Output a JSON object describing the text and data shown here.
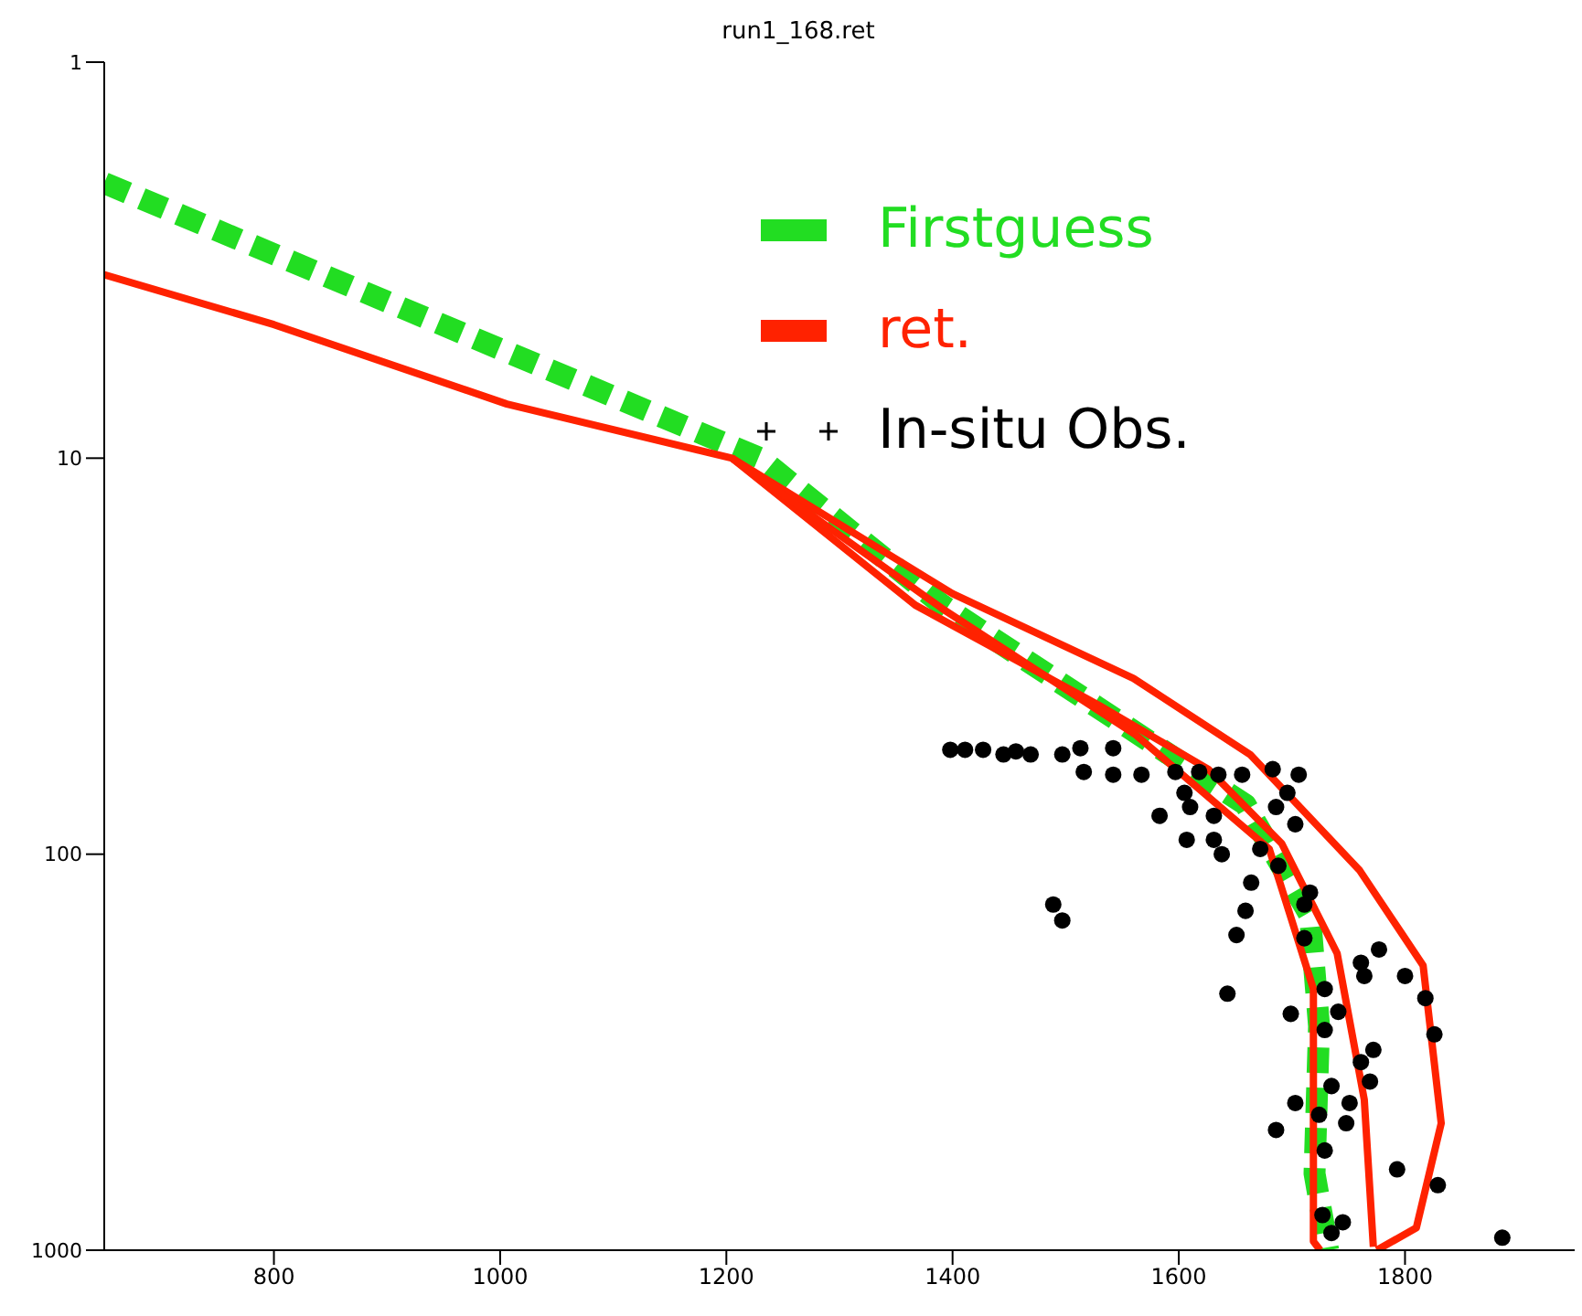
{
  "chart_data": {
    "type": "line",
    "title": "run1_168.ret",
    "log": "y",
    "xlim": [
      650,
      1950
    ],
    "xticks": [
      800,
      1000,
      1200,
      1400,
      1600,
      1800
    ],
    "ylim": [
      1000,
      1
    ],
    "yticks": [
      1,
      10,
      100,
      1000
    ],
    "grid": false,
    "legend": "top",
    "series": [
      {
        "name": "Firstguess",
        "line_style": "dashed",
        "marker": "none",
        "color": "#22dd22",
        "x": [
          650,
          1230,
          1391,
          1562,
          1659,
          1716,
          1724,
          1720,
          1732
        ],
        "values": [
          2.02,
          10,
          23.5,
          49.3,
          75,
          143,
          272,
          640,
          1000
        ]
      },
      {
        "name": "ret.",
        "line_style": "solid",
        "marker": "none",
        "color": "#ff2200",
        "x": [
          650,
          800,
          1006,
          1205,
          1367,
          1529,
          1626,
          1691,
          1740,
          1764,
          1772
        ],
        "values": [
          3.44,
          4.6,
          7.3,
          10,
          23.5,
          42,
          61,
          94,
          178,
          417,
          980
        ]
      },
      {
        "type": "line",
        "line_style": "solid",
        "marker": "none",
        "color": "#ff2200",
        "x": [
          1205,
          1400,
          1560,
          1663,
          1760,
          1816,
          1832,
          1810,
          1775
        ],
        "values": [
          10,
          22,
          36,
          56,
          110,
          191,
          478,
          878,
          1000
        ]
      },
      {
        "type": "line",
        "line_style": "solid",
        "marker": "none",
        "color": "#ff2200",
        "x": [
          1205,
          1391,
          1562,
          1680,
          1719,
          1719,
          1725
        ],
        "values": [
          10,
          24,
          50,
          97,
          219,
          950,
          1000
        ]
      },
      {
        "name": "In-situ Obs.",
        "type": "scatter",
        "marker": "circle",
        "color": "#000000",
        "x": [
          1398,
          1411,
          1427,
          1445,
          1456,
          1469,
          1497,
          1513,
          1542,
          1516,
          1542,
          1567,
          1597,
          1618,
          1635,
          1656,
          1683,
          1706,
          1605,
          1610,
          1583,
          1631,
          1696,
          1686,
          1703,
          1607,
          1631,
          1638,
          1672,
          1688,
          1664,
          1716,
          1489,
          1497,
          1659,
          1711,
          1651,
          1711,
          1777,
          1761,
          1800,
          1764,
          1818,
          1643,
          1729,
          1699,
          1741,
          1729,
          1826,
          1772,
          1761,
          1769,
          1735,
          1751,
          1703,
          1724,
          1748,
          1686,
          1729,
          1793,
          1829,
          1727,
          1745,
          1735,
          1886
        ],
        "values": [
          54.5,
          54.5,
          54.5,
          56,
          55,
          56,
          56,
          54,
          54,
          62,
          63,
          63,
          62,
          62,
          63,
          63,
          61,
          63,
          70,
          76,
          80,
          80,
          70,
          76,
          84,
          92,
          92,
          100,
          97,
          107,
          118,
          125,
          134,
          147,
          139,
          134,
          160,
          163,
          174,
          188,
          203,
          203,
          231,
          225,
          219,
          253,
          250,
          278,
          285,
          312,
          335,
          375,
          385,
          425,
          425,
          455,
          478,
          497,
          560,
          625,
          685,
          815,
          850,
          905,
          930
        ]
      }
    ]
  }
}
